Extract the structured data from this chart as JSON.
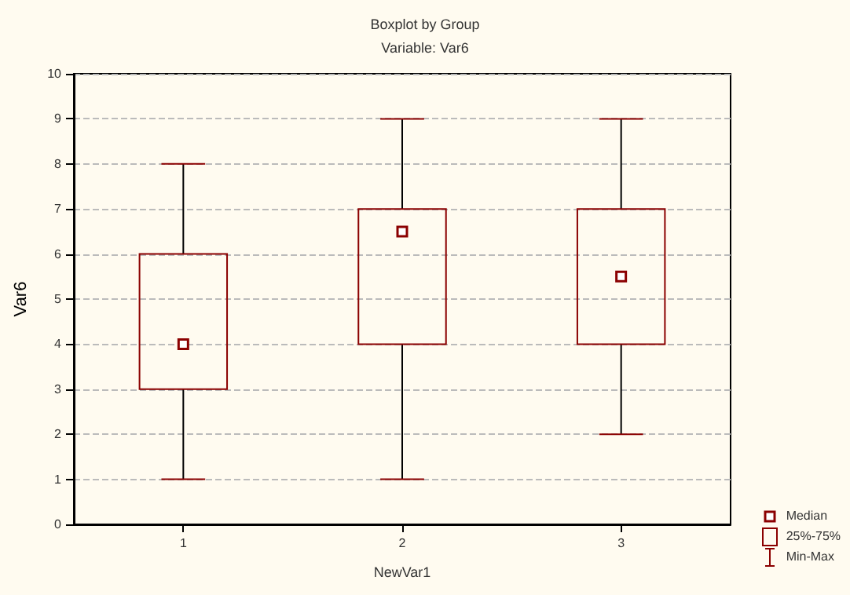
{
  "chart_data": {
    "type": "box",
    "title": "Boxplot by Group",
    "subtitle": "Variable: Var6",
    "xlabel": "NewVar1",
    "ylabel": "Var6",
    "categories": [
      "1",
      "2",
      "3"
    ],
    "color": "#8b0000",
    "boxes": [
      {
        "low": 1,
        "q1": 3,
        "median": 4,
        "q3": 6,
        "high": 8
      },
      {
        "low": 1,
        "q1": 4,
        "median": 6.5,
        "q3": 7,
        "high": 9
      },
      {
        "low": 2,
        "q1": 4,
        "median": 5.5,
        "q3": 7,
        "high": 9
      }
    ],
    "annotations": [
      "Median",
      "25%-75%",
      "Min-Max"
    ],
    "ylim": [
      0,
      10
    ],
    "yticks": [
      0,
      1,
      2,
      3,
      4,
      5,
      6,
      7,
      8,
      9,
      10
    ],
    "grid": "y"
  }
}
